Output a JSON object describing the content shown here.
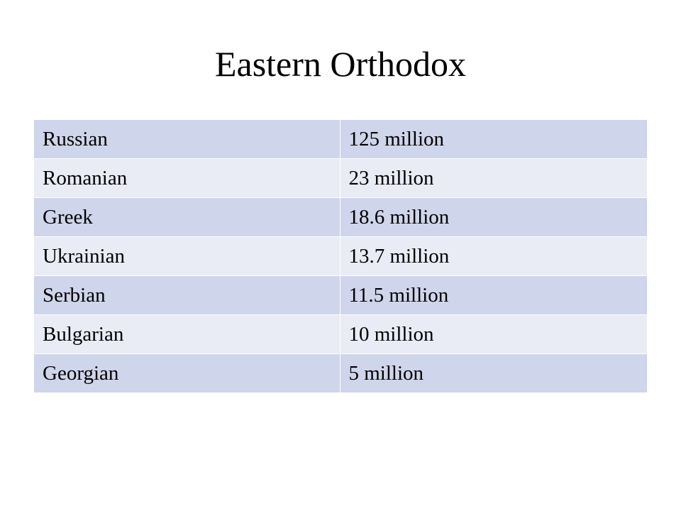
{
  "header": {
    "title": "Eastern Orthodox"
  },
  "table": {
    "rows": [
      [
        "Russian",
        "125 million"
      ],
      [
        "Romanian",
        "23 million"
      ],
      [
        "Greek",
        "18.6 million"
      ],
      [
        "Ukrainian",
        "13.7 million"
      ],
      [
        "Serbian",
        "11.5 million"
      ],
      [
        "Bulgarian",
        "10 million"
      ],
      [
        "Georgian",
        "5 million"
      ]
    ]
  }
}
